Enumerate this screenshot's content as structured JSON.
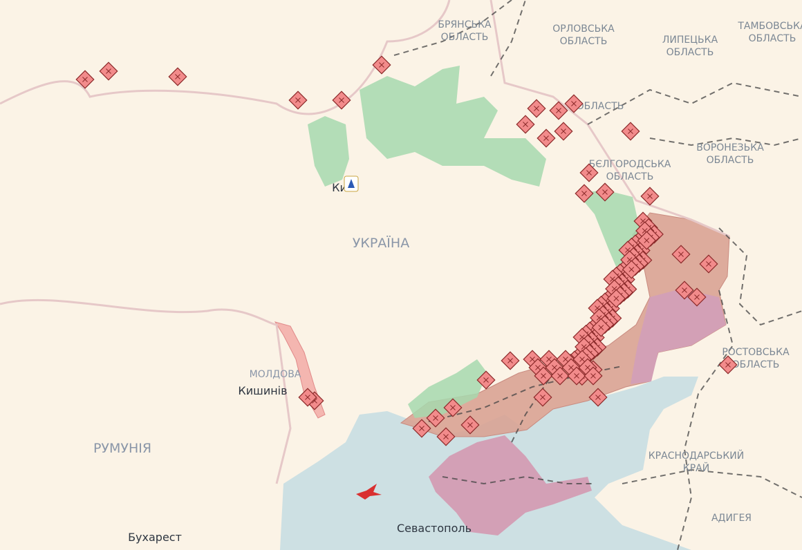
{
  "regions": [
    {
      "lines": [
        "БРЯНСЬКА",
        "ОБЛАСТЬ"
      ]
    },
    {
      "lines": [
        "ОРЛОВСЬКА",
        "ОБЛАСТЬ"
      ]
    },
    {
      "lines": [
        "ЛИПЕЦЬКА",
        "ОБЛАСТЬ"
      ]
    },
    {
      "lines": [
        "ТАМБОВСЬКА",
        "ОБЛАСТЬ"
      ]
    },
    {
      "lines": [
        "ОБЛАСТЬ"
      ]
    },
    {
      "lines": [
        "БЄЛГОРОДСЬКА",
        "ОБЛАСТЬ"
      ]
    },
    {
      "lines": [
        "ВОРОНЕЗЬКА",
        "ОБЛАСТЬ"
      ]
    },
    {
      "lines": [
        "РОСТОВСЬКА",
        "ОБЛАСТЬ"
      ]
    },
    {
      "lines": [
        "КРАСНОДАРСЬКИЙ",
        "КРАЙ"
      ]
    },
    {
      "lines": [
        "АДИГЕЯ"
      ]
    }
  ],
  "countries": [
    "УКРАЇНА",
    "МОЛДОВА",
    "РУМУНІЯ"
  ],
  "cities": [
    "Київ",
    "Кишинів",
    "Бухарест",
    "Севастополь"
  ]
}
